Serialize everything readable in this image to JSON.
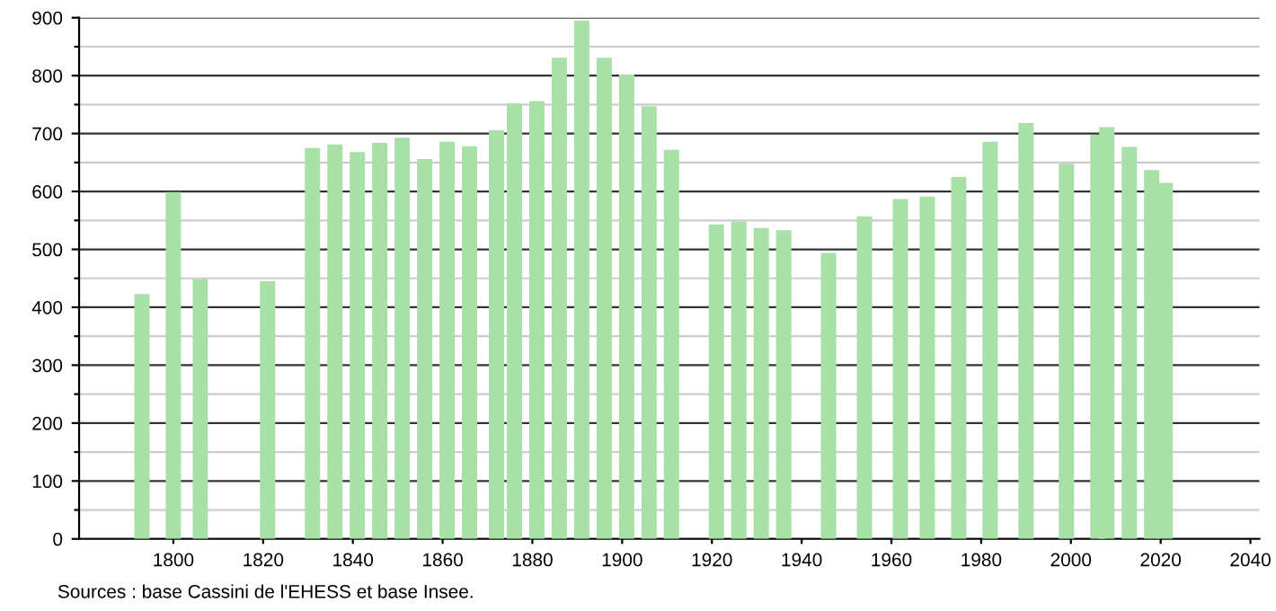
{
  "chart_data": {
    "type": "bar",
    "x": [
      1793,
      1800,
      1806,
      1821,
      1831,
      1836,
      1841,
      1846,
      1851,
      1856,
      1861,
      1866,
      1872,
      1876,
      1881,
      1886,
      1891,
      1896,
      1901,
      1906,
      1911,
      1921,
      1926,
      1931,
      1936,
      1946,
      1954,
      1962,
      1968,
      1975,
      1982,
      1990,
      1999,
      2006,
      2008,
      2013,
      2018,
      2021
    ],
    "values": [
      423,
      599,
      449,
      445,
      675,
      681,
      668,
      684,
      693,
      656,
      686,
      678,
      706,
      752,
      756,
      831,
      895,
      831,
      802,
      747,
      672,
      543,
      548,
      537,
      533,
      494,
      557,
      587,
      591,
      625,
      686,
      718,
      648,
      698,
      711,
      677,
      637,
      615
    ],
    "color": "#a8e0a8",
    "xlim": [
      1779,
      2042
    ],
    "xticks": [
      1800,
      1820,
      1840,
      1860,
      1880,
      1900,
      1920,
      1940,
      1960,
      1980,
      2000,
      2020,
      2040
    ],
    "ylim": [
      0,
      900
    ],
    "yticks": [
      0,
      {
        "value": 50,
        "label": null
      },
      100,
      {
        "value": 150,
        "label": null
      },
      200,
      {
        "value": 250,
        "label": null
      },
      300,
      {
        "value": 350,
        "label": null
      },
      400,
      {
        "value": 450,
        "label": null
      },
      500,
      {
        "value": 550,
        "label": null
      },
      600,
      {
        "value": 650,
        "label": null
      },
      700,
      {
        "value": 750,
        "label": null
      },
      800,
      {
        "value": 850,
        "label": null
      },
      900
    ],
    "grid": "y",
    "annotations": [
      "Sources : base Cassini de l'EHESS et base Insee."
    ]
  }
}
